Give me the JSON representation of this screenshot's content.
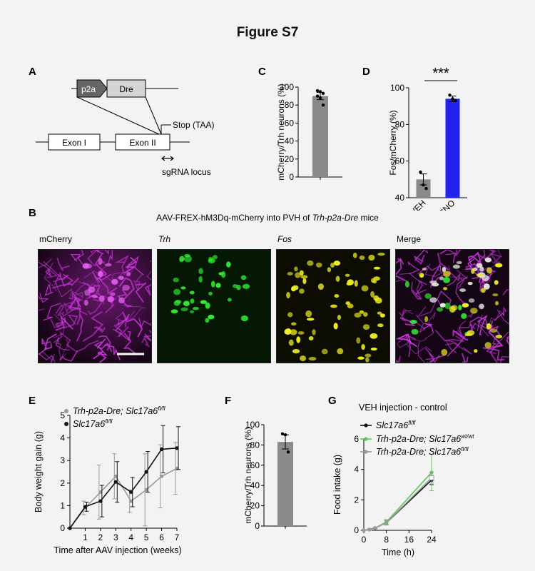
{
  "figure_title": "Figure S7",
  "panels": {
    "A": {
      "letter": "A",
      "boxes": [
        "p2a",
        "Dre",
        "Exon I",
        "Exon II"
      ],
      "stop_label": "Stop (TAA)",
      "sgrna_label": "sgRNA locus"
    },
    "B": {
      "letter": "B",
      "caption_prefix": "AAV-FREX-hM3Dq-mCherry into PVH of ",
      "caption_italic": "Trh-p2a-Dre",
      "caption_suffix": " mice",
      "channels": [
        "mCherry",
        "Trh",
        "Fos",
        "Merge"
      ]
    },
    "C": {
      "letter": "C"
    },
    "D": {
      "letter": "D"
    },
    "E": {
      "letter": "E"
    },
    "F": {
      "letter": "F"
    },
    "G": {
      "letter": "G"
    }
  },
  "colors": {
    "cno_bar": "#2222ee",
    "gray_bar": "#8a8a8a",
    "mcherry": "#cc33dd",
    "trh": "#33ee33",
    "fos": "#eeee22",
    "green_line": "#5cc85c",
    "gray_line": "#9a9a9a"
  },
  "chart_data": [
    {
      "id": "C",
      "type": "bar",
      "categories": [
        ""
      ],
      "values": [
        90
      ],
      "errors": [
        4
      ],
      "points": [
        96,
        95,
        93,
        90,
        88,
        80
      ],
      "ylabel": "mCherry/Trh neurons (%)",
      "ylim": [
        0,
        100
      ],
      "yticks": [
        "0",
        "20",
        "40",
        "60",
        "80",
        "100"
      ]
    },
    {
      "id": "D",
      "type": "bar",
      "categories": [
        "VEH",
        "CNO"
      ],
      "values": [
        50,
        94
      ],
      "errors": [
        3,
        1.5
      ],
      "points": [
        [
          54,
          47,
          45
        ],
        [
          96,
          94,
          93
        ]
      ],
      "ylabel": "Fos/mCherry (%)",
      "ylim": [
        40,
        100
      ],
      "yticks": [
        "40",
        "60",
        "80",
        "100"
      ],
      "significance": "***"
    },
    {
      "id": "E",
      "type": "line",
      "x": [
        0,
        1,
        2,
        3,
        4,
        5,
        6,
        7
      ],
      "xticks": [
        "1",
        "2",
        "3",
        "4",
        "5",
        "6",
        "7"
      ],
      "series": [
        {
          "name": "Trh-p2a-Dre; Slc17a6",
          "sup": "fl/fl",
          "values": [
            0,
            0.9,
            1.6,
            2.3,
            1.2,
            1.7,
            2.3,
            2.65
          ],
          "errors": [
            0,
            0.3,
            1.2,
            1.0,
            0.5,
            1.6,
            1.4,
            1.15
          ]
        },
        {
          "name": "Slc17a6",
          "sup": "fl/fl",
          "values": [
            0,
            0.95,
            1.2,
            2.05,
            1.6,
            2.5,
            3.5,
            3.55
          ],
          "errors": [
            0,
            0.2,
            0.7,
            0.9,
            0.65,
            0.9,
            1.05,
            0.95
          ]
        }
      ],
      "xlabel": "Time after AAV injection  (weeks)",
      "ylabel": "Body weight gain (g)",
      "ylim": [
        0,
        5
      ],
      "yticks": [
        "0",
        "1",
        "2",
        "3",
        "4",
        "5"
      ]
    },
    {
      "id": "F",
      "type": "bar",
      "categories": [
        ""
      ],
      "values": [
        83
      ],
      "errors": [
        7
      ],
      "points": [
        91,
        90,
        73
      ],
      "ylabel": "mCherry/Trh neurons (%)",
      "ylim": [
        0,
        100
      ],
      "yticks": [
        "0",
        "20",
        "40",
        "60",
        "80",
        "100"
      ]
    },
    {
      "id": "G",
      "type": "line",
      "title": "VEH injection - control",
      "x": [
        0,
        2,
        4,
        8,
        24
      ],
      "xticks": [
        "0",
        "8",
        "16",
        "24"
      ],
      "series": [
        {
          "name": "Slc17a6",
          "sup": "fl/fl",
          "values": [
            0,
            0.05,
            0.15,
            0.5,
            3.3
          ],
          "errors": [
            0,
            0.05,
            0.05,
            0.15,
            0.3
          ]
        },
        {
          "name": "Trh-p2a-Dre; Slc17a6",
          "sup": "wt/wt",
          "values": [
            0,
            0.05,
            0.15,
            0.55,
            3.8
          ],
          "errors": [
            0,
            0.05,
            0.05,
            0.15,
            1.2
          ]
        },
        {
          "name": "Trh-p2a-Dre; Slc17a6",
          "sup": "fl/fl",
          "values": [
            0,
            0.05,
            0.15,
            0.5,
            3.45
          ],
          "errors": [
            0,
            0.05,
            0.05,
            0.15,
            0.35
          ]
        }
      ],
      "xlabel": "Time (h)",
      "ylabel": "Food intake (g)",
      "ylim": [
        0,
        6
      ],
      "yticks": [
        "0",
        "2",
        "4",
        "6"
      ]
    }
  ]
}
